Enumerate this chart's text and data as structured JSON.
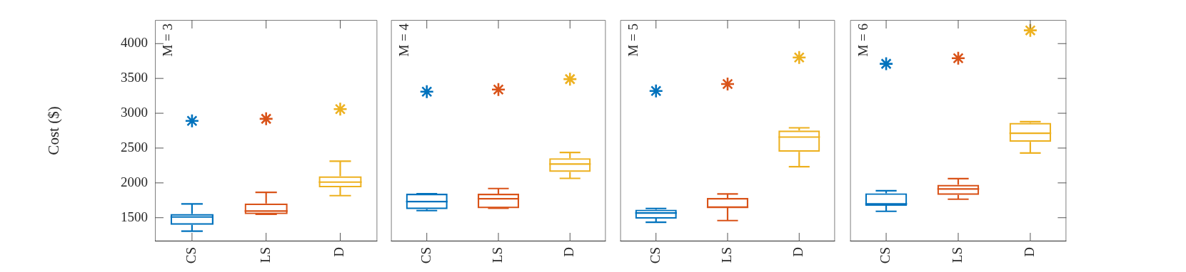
{
  "chart_data": [
    {
      "type": "box",
      "title": "M = 3",
      "ylabel": "Cost ($)",
      "categories": [
        "CS",
        "LS",
        "D"
      ],
      "colors": [
        "#0072bd",
        "#d95319",
        "#edb120"
      ],
      "boxes": [
        {
          "low": 1306,
          "q1": 1398,
          "median": 1510,
          "q3": 1554,
          "high": 1698
        },
        {
          "low": 1550,
          "q1": 1550,
          "median": 1595,
          "q3": 1704,
          "high": 1864
        },
        {
          "low": 1817,
          "q1": 1936,
          "median": 2011,
          "q3": 2096,
          "high": 2311
        }
      ],
      "series": [
        {
          "type": "scatter",
          "x": [
            "CS",
            "LS",
            "D"
          ],
          "values": [
            2890,
            2920,
            3060
          ],
          "colors": [
            "#0072bd",
            "#d95319",
            "#edb120"
          ]
        }
      ],
      "marker": "cross",
      "ylim": [
        1160,
        4340
      ],
      "yticks": [
        1500,
        2000,
        2500,
        3000,
        3500,
        4000
      ],
      "grid": false,
      "legend": false
    },
    {
      "type": "box",
      "title": "M = 4",
      "categories": [
        "CS",
        "LS",
        "D"
      ],
      "colors": [
        "#0072bd",
        "#d95319",
        "#edb120"
      ],
      "boxes": [
        {
          "low": 1602,
          "q1": 1623,
          "median": 1732,
          "q3": 1845,
          "high": 1845
        },
        {
          "low": 1636,
          "q1": 1636,
          "median": 1772,
          "q3": 1844,
          "high": 1919
        },
        {
          "low": 2065,
          "q1": 2157,
          "median": 2270,
          "q3": 2355,
          "high": 2437
        }
      ],
      "series": [
        {
          "type": "scatter",
          "x": [
            "CS",
            "LS",
            "D"
          ],
          "values": [
            3310,
            3340,
            3490
          ],
          "colors": [
            "#0072bd",
            "#d95319",
            "#edb120"
          ]
        }
      ],
      "marker": "cross",
      "ylim": [
        1160,
        4340
      ],
      "yticks": [
        1500,
        2000,
        2500,
        3000,
        3500,
        4000
      ],
      "tick_labels": "x",
      "grid": false,
      "legend": false
    },
    {
      "type": "box",
      "title": "M = 5",
      "categories": [
        "CS",
        "LS",
        "D"
      ],
      "colors": [
        "#0072bd",
        "#d95319",
        "#edb120"
      ],
      "boxes": [
        {
          "low": 1435,
          "q1": 1486,
          "median": 1568,
          "q3": 1616,
          "high": 1633
        },
        {
          "low": 1459,
          "q1": 1640,
          "median": 1650,
          "q3": 1783,
          "high": 1841
        },
        {
          "low": 2232,
          "q1": 2447,
          "median": 2658,
          "q3": 2753,
          "high": 2791
        }
      ],
      "series": [
        {
          "type": "scatter",
          "x": [
            "CS",
            "LS",
            "D"
          ],
          "values": [
            3320,
            3420,
            3800
          ],
          "colors": [
            "#0072bd",
            "#d95319",
            "#edb120"
          ]
        }
      ],
      "marker": "cross",
      "ylim": [
        1160,
        4340
      ],
      "yticks": [
        1500,
        2000,
        2500,
        3000,
        3500,
        4000
      ],
      "tick_labels": "x",
      "grid": false,
      "legend": false
    },
    {
      "type": "box",
      "title": "M = 6",
      "categories": [
        "CS",
        "LS",
        "D"
      ],
      "colors": [
        "#0072bd",
        "#d95319",
        "#edb120"
      ],
      "boxes": [
        {
          "low": 1592,
          "q1": 1670,
          "median": 1698,
          "q3": 1851,
          "high": 1888
        },
        {
          "low": 1766,
          "q1": 1827,
          "median": 1912,
          "q3": 1973,
          "high": 2062
        },
        {
          "low": 2430,
          "q1": 2590,
          "median": 2712,
          "q3": 2862,
          "high": 2879
        }
      ],
      "series": [
        {
          "type": "scatter",
          "x": [
            "CS",
            "LS",
            "D"
          ],
          "values": [
            3710,
            3790,
            4190
          ],
          "colors": [
            "#0072bd",
            "#d95319",
            "#edb120"
          ]
        }
      ],
      "marker": "cross",
      "ylim": [
        1160,
        4340
      ],
      "yticks": [
        1500,
        2000,
        2500,
        3000,
        3500,
        4000
      ],
      "tick_labels": "x",
      "grid": false,
      "legend": false
    }
  ]
}
